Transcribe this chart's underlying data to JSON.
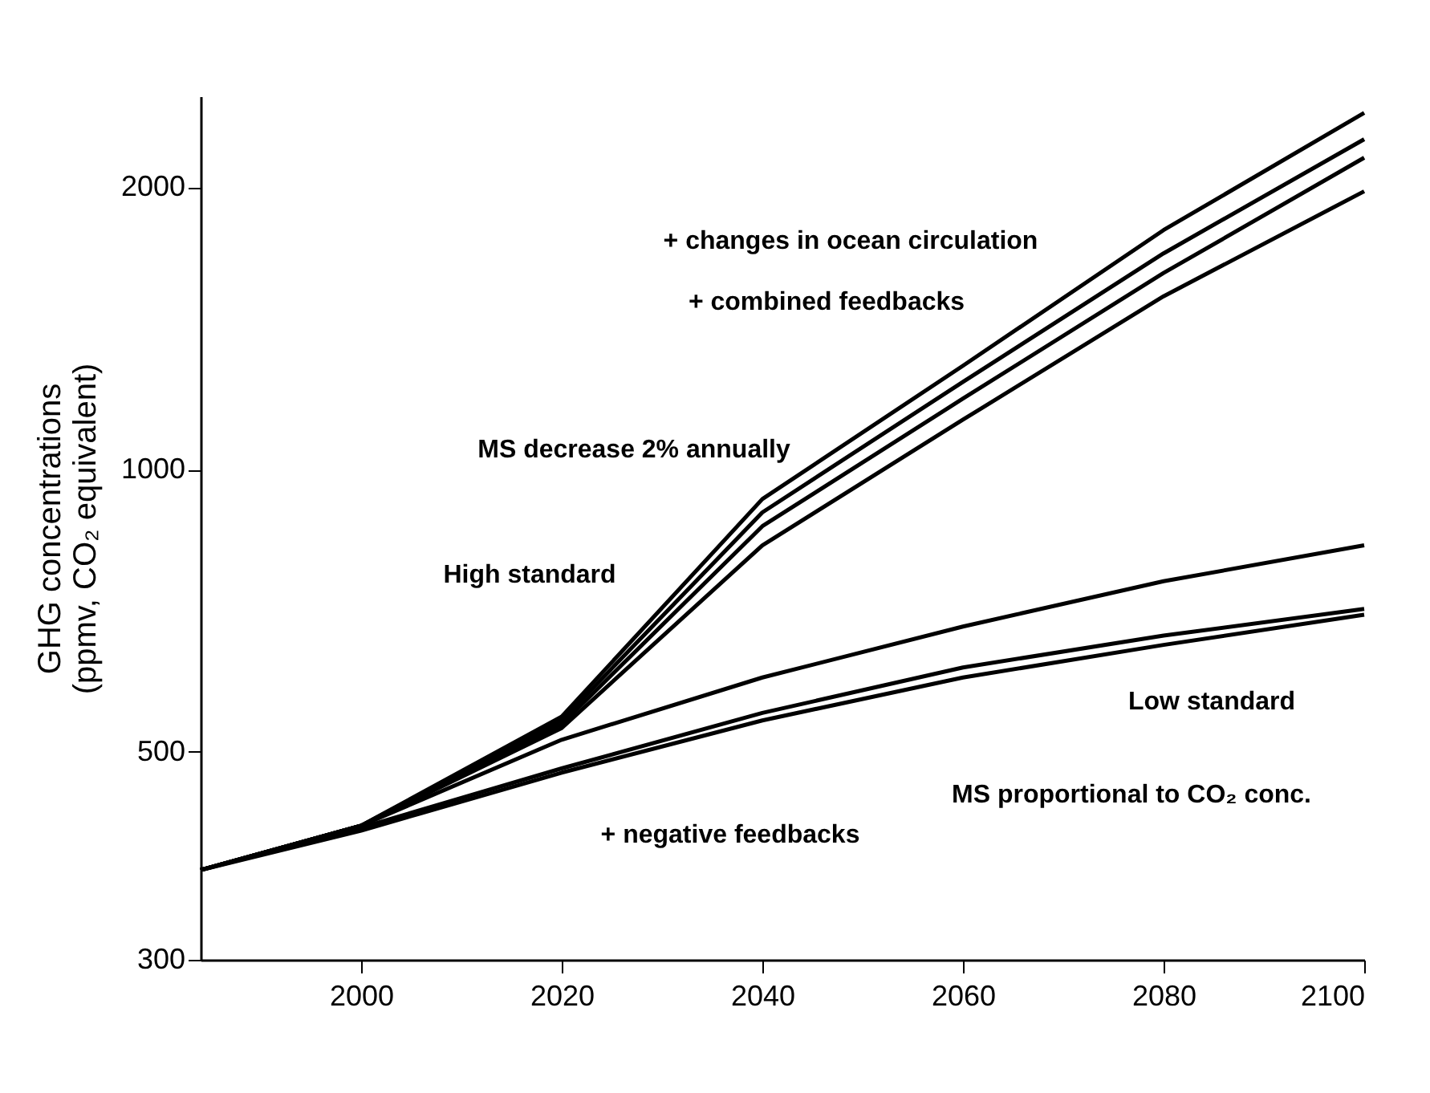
{
  "chart_data": {
    "type": "line",
    "ylabel": "GHG concentrations\n(ppmv, CO₂ equivalent)",
    "log": true,
    "grid": false,
    "legend": false,
    "marker": "none",
    "line_style": "solid",
    "x": [
      1984,
      2000,
      2020,
      2040,
      2060,
      2080,
      2100
    ],
    "xlim": [
      1984,
      2100
    ],
    "xticks": [
      2000,
      2020,
      2040,
      2060,
      2080,
      2100
    ],
    "ylim": [
      300,
      2500
    ],
    "yticks": [
      300,
      500,
      1000,
      2000
    ],
    "series": [
      {
        "color": "#000000",
        "values": [
          374,
          417,
          545,
          930,
          1290,
          1800,
          2400
        ]
      },
      {
        "color": "#000000",
        "values": [
          374,
          417,
          540,
          900,
          1240,
          1700,
          2250
        ]
      },
      {
        "color": "#000000",
        "values": [
          374,
          417,
          535,
          870,
          1190,
          1620,
          2150
        ]
      },
      {
        "color": "#000000",
        "values": [
          374,
          417,
          530,
          830,
          1130,
          1530,
          1980
        ]
      },
      {
        "color": "#000000",
        "values": [
          374,
          417,
          515,
          600,
          680,
          760,
          830
        ]
      },
      {
        "color": "#000000",
        "values": [
          374,
          415,
          480,
          550,
          615,
          665,
          710
        ]
      },
      {
        "color": "#000000",
        "values": [
          374,
          412,
          475,
          540,
          600,
          650,
          700
        ]
      }
    ],
    "annotations": [
      "+ changes in ocean circulation",
      "+ combined feedbacks",
      "MS decrease 2% annually",
      "High standard",
      "Low standard",
      "MS proportional to CO₂ conc.",
      "+ negative feedbacks"
    ]
  }
}
